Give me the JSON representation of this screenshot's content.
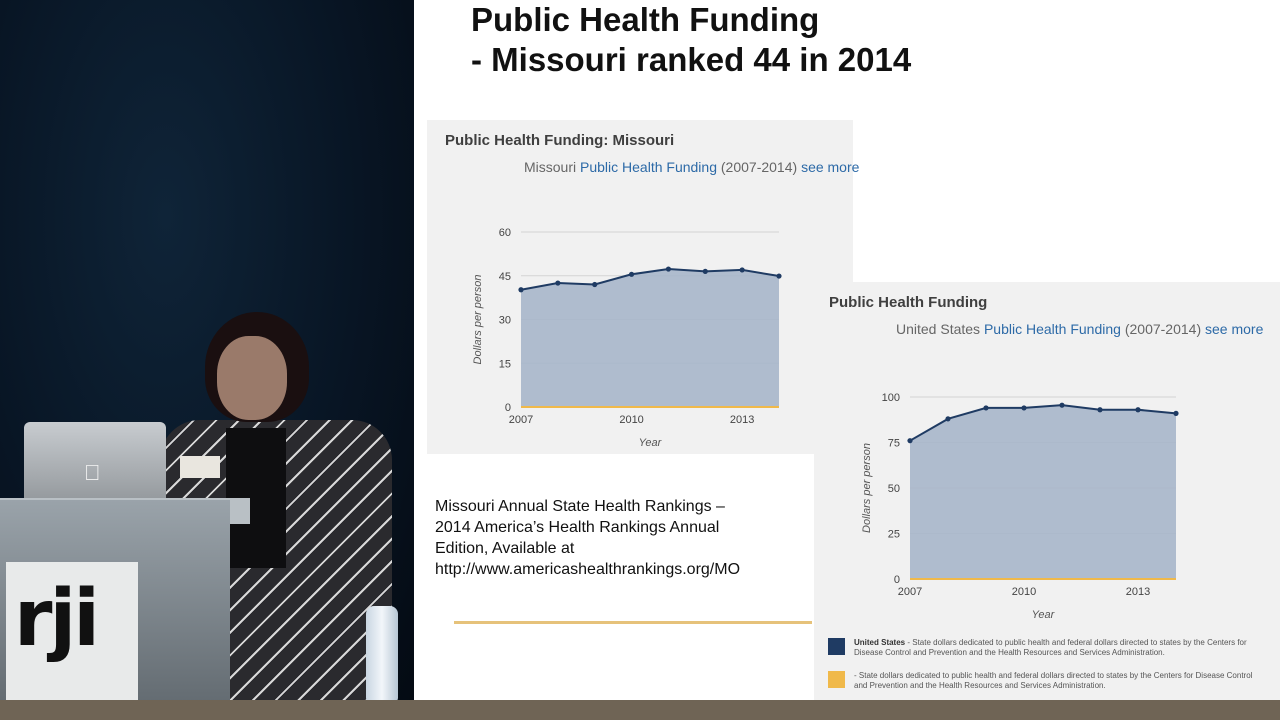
{
  "slide": {
    "title_line1": "Public Health Funding",
    "title_line2": "- Missouri ranked 44 in 2014"
  },
  "citation": {
    "lines": [
      "Missouri Annual State Health Rankings –",
      "2014 America’s Health Rankings Annual",
      "Edition, Available at",
      "http://www.americashealthrankings.org/MO"
    ]
  },
  "chart_data": [
    {
      "type": "area",
      "title": "Public Health Funding: Missouri",
      "subtitle_prefix": "Missouri",
      "subtitle_link": "Public Health Funding",
      "subtitle_range": "(2007-2014)",
      "see_more": "see more",
      "xlabel": "Year",
      "ylabel": "Dollars per person",
      "x": [
        2007,
        2008,
        2009,
        2010,
        2011,
        2012,
        2013,
        2014
      ],
      "values": [
        40.2,
        42.5,
        42.0,
        45.5,
        47.3,
        46.5,
        47.0,
        44.9
      ],
      "ylim": [
        0,
        60
      ],
      "yticks": [
        "0",
        "15",
        "30",
        "45",
        "60"
      ],
      "xticks": [
        "2007",
        "2010",
        "2013"
      ],
      "xtick_values": [
        2007,
        2010,
        2013
      ],
      "grid": true,
      "colors": {
        "area": "#a7b6ca",
        "line": "#1f3b63",
        "baseline": "#f0b94a"
      }
    },
    {
      "type": "area",
      "title": "Public Health Funding",
      "subtitle_prefix": "United States",
      "subtitle_link": "Public Health Funding",
      "subtitle_range": "(2007-2014)",
      "see_more": "see more",
      "xlabel": "Year",
      "ylabel": "Dollars per person",
      "x": [
        2007,
        2008,
        2009,
        2010,
        2011,
        2012,
        2013,
        2014
      ],
      "values": [
        76,
        88,
        94,
        94,
        95.5,
        93,
        93,
        91
      ],
      "ylim": [
        0,
        100
      ],
      "yticks": [
        "0",
        "25",
        "50",
        "75",
        "100"
      ],
      "xticks": [
        "2007",
        "2010",
        "2013"
      ],
      "xtick_values": [
        2007,
        2010,
        2013
      ],
      "grid": true,
      "colors": {
        "area": "#a7b6ca",
        "line": "#1f3b63",
        "baseline": "#f0b94a"
      },
      "legend": [
        {
          "name": "United States",
          "color": "#1f3b63",
          "text": " - State dollars dedicated to public health and federal dollars directed to states by the Centers for Disease Control and Prevention and the Health Resources and Services Administration."
        },
        {
          "name": "",
          "color": "#f0b94a",
          "text": "- State dollars dedicated to public health and federal dollars directed to states by the Centers for Disease Control and Prevention and the Health Resources and Services Administration."
        }
      ]
    }
  ],
  "scene": {
    "podium_logo": "rji"
  }
}
